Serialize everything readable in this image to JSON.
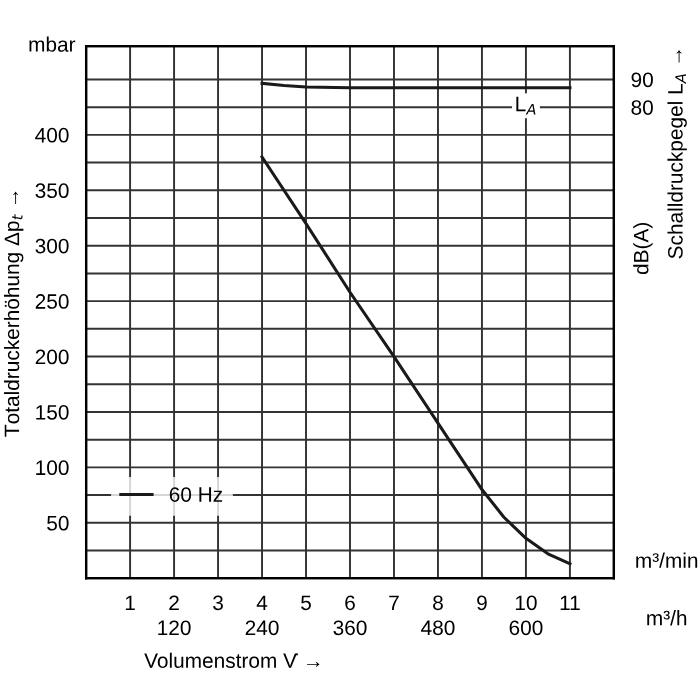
{
  "chart_data": {
    "type": "line",
    "xlabel": "Volumenstrom V̇ →",
    "ylabel": "Totaldruckerhöhung Δp$_{t}$ →",
    "y2label": "Schalldruckpegel L$_{A}$ →",
    "x2label": "m³/h",
    "annotations": [
      "mbar",
      "dB(A)",
      "m³/min"
    ],
    "xlim": [
      0,
      12
    ],
    "xticks": [
      {
        "value": 0,
        "label": null
      },
      1,
      2,
      3,
      4,
      5,
      6,
      7,
      8,
      9,
      10,
      11,
      {
        "value": 12,
        "label": null
      }
    ],
    "x2lim": [
      0,
      720
    ],
    "x2ticks": [
      120,
      240,
      360,
      480,
      600
    ],
    "ylim": [
      0,
      480
    ],
    "yticks": [
      {
        "value": 0,
        "label": null
      },
      {
        "value": 25,
        "label": null
      },
      50,
      {
        "value": 75,
        "label": null
      },
      100,
      {
        "value": 125,
        "label": null
      },
      150,
      {
        "value": 175,
        "label": null
      },
      200,
      {
        "value": 225,
        "label": null
      },
      250,
      {
        "value": 275,
        "label": null
      },
      300,
      {
        "value": 325,
        "label": null
      },
      350,
      {
        "value": 375,
        "label": null
      },
      400,
      {
        "value": 425,
        "label": null
      },
      {
        "value": 450,
        "label": null
      }
    ],
    "y2lim": [
      -90,
      102
    ],
    "y2ticks": [
      80,
      90
    ],
    "grid": true,
    "legend": "bottom left",
    "marker": "none",
    "line_style": "solid",
    "series": [
      {
        "name": "60 Hz",
        "color": "#1a1a1a",
        "x": [
          4,
          5,
          6,
          7,
          8,
          9,
          9.5,
          10,
          10.5,
          11
        ],
        "values": [
          380,
          320,
          258,
          200,
          140,
          80,
          55,
          36,
          22,
          13
        ]
      },
      {
        "name": "L$_{A}$",
        "color": "#1a1a1a",
        "axis": "y2",
        "x": [
          4,
          4.5,
          5,
          6,
          7,
          8,
          9,
          10,
          11
        ],
        "values": [
          88.6,
          87.8,
          87.3,
          87,
          87,
          87,
          87,
          87,
          87
        ]
      }
    ]
  }
}
